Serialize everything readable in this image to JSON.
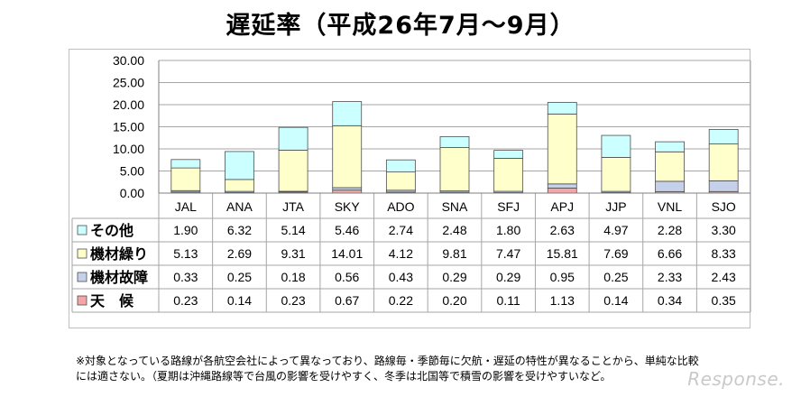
{
  "title": "遅延率（平成26年7月～9月）",
  "note_line1": "※対象となっている路線が各航空会社によって異なっており、路線毎・季節毎に欠航・遅延の特性が異なることから、単純な比較",
  "note_line2": "には適さない。（夏期は沖縄路線等で台風の影響を受けやすく、冬季は北国等で積雪の影響を受けやすいなど。",
  "watermark": "Response.",
  "chart_data": {
    "type": "bar",
    "stacked": true,
    "categories": [
      "JAL",
      "ANA",
      "JTA",
      "SKY",
      "ADO",
      "SNA",
      "SFJ",
      "APJ",
      "JJP",
      "VNL",
      "SJO"
    ],
    "ylim": [
      0,
      30
    ],
    "yticks": [
      "0.00",
      "5.00",
      "10.00",
      "15.00",
      "20.00",
      "25.00",
      "30.00"
    ],
    "grid": true,
    "series": [
      {
        "name": "天　候",
        "color": "#f4a6a6",
        "values": [
          0.23,
          0.14,
          0.23,
          0.67,
          0.22,
          0.2,
          0.11,
          1.13,
          0.14,
          0.34,
          0.35
        ]
      },
      {
        "name": "機材故障",
        "color": "#c5d1ea",
        "values": [
          0.33,
          0.25,
          0.18,
          0.56,
          0.43,
          0.29,
          0.29,
          0.95,
          0.25,
          2.33,
          2.43
        ]
      },
      {
        "name": "機材繰り",
        "color": "#ffffcc",
        "values": [
          5.13,
          2.69,
          9.31,
          14.01,
          4.12,
          9.81,
          7.47,
          15.81,
          7.69,
          6.66,
          8.33
        ]
      },
      {
        "name": "その他",
        "color": "#ccffff",
        "values": [
          1.9,
          6.32,
          5.14,
          5.46,
          2.74,
          2.48,
          1.8,
          2.63,
          4.97,
          2.28,
          3.3
        ]
      }
    ],
    "table_rows": [
      {
        "name": "その他",
        "color": "#ccffff",
        "cells": [
          "1.90",
          "6.32",
          "5.14",
          "5.46",
          "2.74",
          "2.48",
          "1.80",
          "2.63",
          "4.97",
          "2.28",
          "3.30"
        ]
      },
      {
        "name": "機材繰り",
        "color": "#ffffcc",
        "cells": [
          "5.13",
          "2.69",
          "9.31",
          "14.01",
          "4.12",
          "9.81",
          "7.47",
          "15.81",
          "7.69",
          "6.66",
          "8.33"
        ]
      },
      {
        "name": "機材故障",
        "color": "#c5d1ea",
        "cells": [
          "0.33",
          "0.25",
          "0.18",
          "0.56",
          "0.43",
          "0.29",
          "0.29",
          "0.95",
          "0.25",
          "2.33",
          "2.43"
        ]
      },
      {
        "name": "天　候",
        "color": "#f4a6a6",
        "cells": [
          "0.23",
          "0.14",
          "0.23",
          "0.67",
          "0.22",
          "0.20",
          "0.11",
          "1.13",
          "0.14",
          "0.34",
          "0.35"
        ]
      }
    ]
  }
}
